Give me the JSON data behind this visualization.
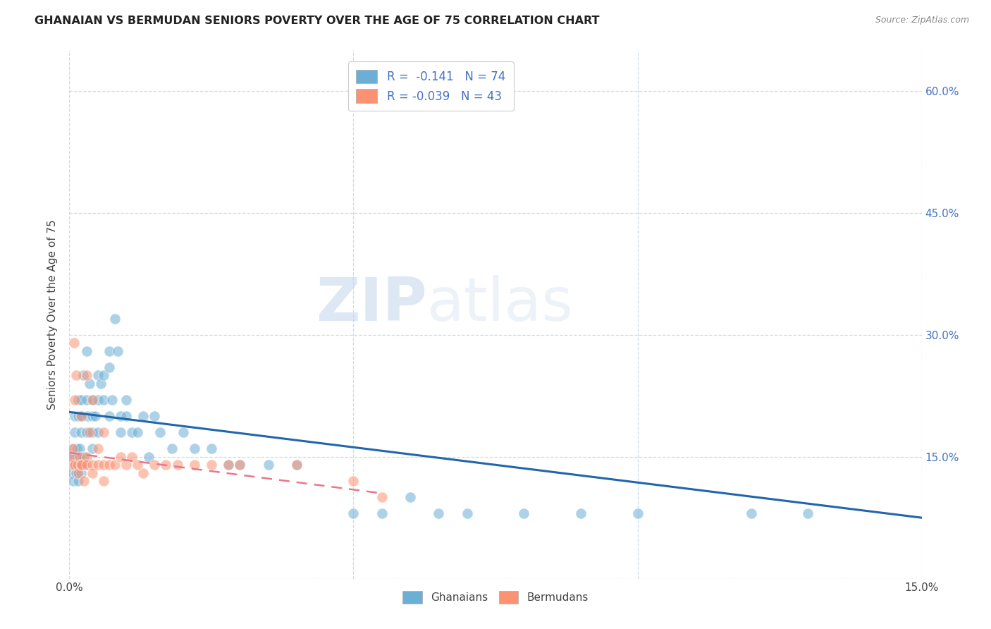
{
  "title": "GHANAIAN VS BERMUDAN SENIORS POVERTY OVER THE AGE OF 75 CORRELATION CHART",
  "source": "Source: ZipAtlas.com",
  "ylabel": "Seniors Poverty Over the Age of 75",
  "xlim": [
    0.0,
    0.15
  ],
  "ylim": [
    0.0,
    0.65
  ],
  "ghanaian_color": "#6baed6",
  "bermudan_color": "#fc9272",
  "ghanaian_line_color": "#2166ac",
  "bermudan_line_color": "#e8778a",
  "ghanaian_R": -0.141,
  "ghanaian_N": 74,
  "bermudan_R": -0.039,
  "bermudan_N": 43,
  "watermark_zip": "ZIP",
  "watermark_atlas": "atlas",
  "gh_x": [
    0.0004,
    0.0005,
    0.0007,
    0.0008,
    0.0009,
    0.001,
    0.001,
    0.001,
    0.0012,
    0.0013,
    0.0014,
    0.0015,
    0.0015,
    0.0016,
    0.0017,
    0.0018,
    0.002,
    0.002,
    0.002,
    0.002,
    0.0022,
    0.0024,
    0.0025,
    0.0026,
    0.003,
    0.003,
    0.003,
    0.0032,
    0.0035,
    0.004,
    0.004,
    0.004,
    0.0042,
    0.0045,
    0.005,
    0.005,
    0.005,
    0.0055,
    0.006,
    0.006,
    0.007,
    0.007,
    0.007,
    0.0075,
    0.008,
    0.0085,
    0.009,
    0.009,
    0.01,
    0.01,
    0.011,
    0.012,
    0.013,
    0.014,
    0.015,
    0.016,
    0.018,
    0.02,
    0.022,
    0.025,
    0.028,
    0.03,
    0.035,
    0.04,
    0.05,
    0.055,
    0.06,
    0.065,
    0.07,
    0.08,
    0.09,
    0.1,
    0.12,
    0.13
  ],
  "gh_y": [
    0.13,
    0.15,
    0.12,
    0.16,
    0.15,
    0.14,
    0.18,
    0.2,
    0.13,
    0.16,
    0.15,
    0.22,
    0.12,
    0.2,
    0.14,
    0.16,
    0.15,
    0.13,
    0.18,
    0.22,
    0.2,
    0.25,
    0.15,
    0.14,
    0.28,
    0.22,
    0.18,
    0.2,
    0.24,
    0.2,
    0.18,
    0.16,
    0.22,
    0.2,
    0.22,
    0.18,
    0.25,
    0.24,
    0.25,
    0.22,
    0.28,
    0.26,
    0.2,
    0.22,
    0.32,
    0.28,
    0.2,
    0.18,
    0.2,
    0.22,
    0.18,
    0.18,
    0.2,
    0.15,
    0.2,
    0.18,
    0.16,
    0.18,
    0.16,
    0.16,
    0.14,
    0.14,
    0.14,
    0.14,
    0.08,
    0.08,
    0.1,
    0.08,
    0.08,
    0.08,
    0.08,
    0.08,
    0.08,
    0.08
  ],
  "bm_x": [
    0.0003,
    0.0005,
    0.0006,
    0.0008,
    0.001,
    0.001,
    0.0012,
    0.0014,
    0.0016,
    0.0018,
    0.002,
    0.002,
    0.0022,
    0.0025,
    0.003,
    0.003,
    0.003,
    0.0035,
    0.004,
    0.004,
    0.004,
    0.005,
    0.005,
    0.006,
    0.006,
    0.006,
    0.007,
    0.008,
    0.009,
    0.01,
    0.011,
    0.012,
    0.013,
    0.015,
    0.017,
    0.019,
    0.022,
    0.025,
    0.028,
    0.03,
    0.04,
    0.05,
    0.055
  ],
  "bm_y": [
    0.14,
    0.15,
    0.16,
    0.29,
    0.14,
    0.22,
    0.25,
    0.14,
    0.13,
    0.15,
    0.14,
    0.2,
    0.14,
    0.12,
    0.25,
    0.15,
    0.14,
    0.18,
    0.14,
    0.13,
    0.22,
    0.16,
    0.14,
    0.14,
    0.18,
    0.12,
    0.14,
    0.14,
    0.15,
    0.14,
    0.15,
    0.14,
    0.13,
    0.14,
    0.14,
    0.14,
    0.14,
    0.14,
    0.14,
    0.14,
    0.14,
    0.12,
    0.1
  ],
  "gh_trend_x": [
    0.0,
    0.15
  ],
  "gh_trend_y": [
    0.205,
    0.075
  ],
  "bm_trend_x": [
    0.0,
    0.055
  ],
  "bm_trend_y": [
    0.155,
    0.105
  ]
}
